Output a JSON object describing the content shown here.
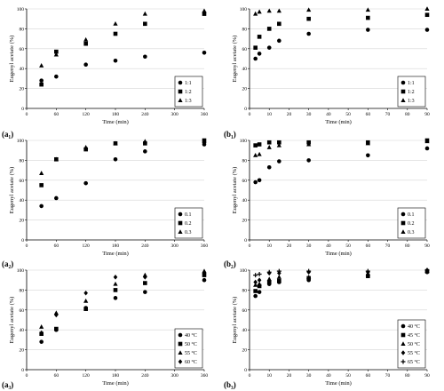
{
  "chart_data": [
    {
      "id": "a1",
      "type": "scatter",
      "panel_label": "",
      "xlabel": "Time (min)",
      "ylabel": "Eugenyl acetate (%)",
      "xlim": [
        0,
        360
      ],
      "ylim": [
        0,
        100
      ],
      "xticks": [
        0,
        60,
        120,
        180,
        240,
        300,
        360
      ],
      "yticks": [
        0,
        20,
        40,
        60,
        80,
        100
      ],
      "legend_position": "bottom-right",
      "series": [
        {
          "name": "1:1",
          "marker": "circle",
          "x": [
            30,
            60,
            120,
            180,
            240,
            360
          ],
          "y": [
            28,
            32,
            44,
            48,
            52,
            56
          ]
        },
        {
          "name": "1:2",
          "marker": "square",
          "x": [
            30,
            60,
            120,
            180,
            240,
            360
          ],
          "y": [
            24,
            57,
            65,
            75,
            85,
            95
          ]
        },
        {
          "name": "1:3",
          "marker": "triangle",
          "x": [
            30,
            60,
            120,
            180,
            240,
            360
          ],
          "y": [
            43,
            54,
            69,
            85,
            95,
            98
          ]
        }
      ]
    },
    {
      "id": "b1",
      "type": "scatter",
      "panel_label": "",
      "xlabel": "Time (min)",
      "ylabel": "Eugenyl acetate (%)",
      "xlim": [
        0,
        90
      ],
      "ylim": [
        0,
        100
      ],
      "xticks": [
        0,
        10,
        20,
        30,
        40,
        50,
        60,
        70,
        80,
        90
      ],
      "yticks": [
        0,
        20,
        40,
        60,
        80,
        100
      ],
      "legend_position": "bottom-right",
      "series": [
        {
          "name": "1:1",
          "marker": "circle",
          "x": [
            3,
            5,
            10,
            15,
            30,
            60,
            90
          ],
          "y": [
            50,
            55,
            61,
            68,
            75,
            79,
            79
          ]
        },
        {
          "name": "1:2",
          "marker": "square",
          "x": [
            3,
            5,
            10,
            15,
            30,
            60,
            90
          ],
          "y": [
            61,
            72,
            80,
            85,
            90,
            91,
            94
          ]
        },
        {
          "name": "1:3",
          "marker": "triangle",
          "x": [
            3,
            5,
            10,
            15,
            30,
            60,
            90
          ],
          "y": [
            95,
            97,
            98,
            98,
            99,
            99,
            100
          ]
        }
      ]
    },
    {
      "id": "a2",
      "type": "scatter",
      "panel_label": "(a₁)",
      "xlabel": "Time (min)",
      "ylabel": "Eugenyl acetate (%)",
      "xlim": [
        0,
        360
      ],
      "ylim": [
        0,
        100
      ],
      "xticks": [
        0,
        60,
        120,
        180,
        240,
        300,
        360
      ],
      "yticks": [
        0,
        20,
        40,
        60,
        80,
        100
      ],
      "legend_position": "bottom-right",
      "series": [
        {
          "name": "0.1",
          "marker": "circle",
          "x": [
            30,
            60,
            120,
            180,
            240,
            360
          ],
          "y": [
            34,
            42,
            57,
            81,
            89,
            96
          ]
        },
        {
          "name": "0.2",
          "marker": "square",
          "x": [
            30,
            60,
            120,
            180,
            240,
            360
          ],
          "y": [
            55,
            81,
            91,
            97,
            97,
            100
          ]
        },
        {
          "name": "0.3",
          "marker": "triangle",
          "x": [
            30,
            60,
            120,
            180,
            240,
            360
          ],
          "y": [
            67,
            81,
            93,
            97,
            99,
            99
          ]
        }
      ]
    },
    {
      "id": "b2",
      "type": "scatter",
      "panel_label": "(b₁)",
      "xlabel": "Time (min)",
      "ylabel": "Eugenyl acetate (%)",
      "xlim": [
        0,
        90
      ],
      "ylim": [
        0,
        100
      ],
      "xticks": [
        0,
        10,
        20,
        30,
        40,
        50,
        60,
        70,
        80,
        90
      ],
      "yticks": [
        0,
        20,
        40,
        60,
        80,
        100
      ],
      "legend_position": "bottom-right",
      "series": [
        {
          "name": "0.1",
          "marker": "circle",
          "x": [
            3,
            5,
            10,
            15,
            30,
            60,
            90
          ],
          "y": [
            58,
            60,
            73,
            79,
            80,
            85,
            92
          ]
        },
        {
          "name": "0.2",
          "marker": "square",
          "x": [
            3,
            5,
            10,
            15,
            30,
            60,
            90
          ],
          "y": [
            95,
            96,
            98,
            98,
            98,
            98,
            100
          ]
        },
        {
          "name": "0.3",
          "marker": "triangle",
          "x": [
            3,
            5,
            10,
            15,
            30,
            60,
            90
          ],
          "y": [
            85,
            86,
            93,
            95,
            96,
            97,
            99
          ]
        }
      ]
    },
    {
      "id": "a3",
      "type": "scatter",
      "panel_label": "(a₂)",
      "xlabel": "Time (min)",
      "ylabel": "Eugenyl acetate (%)",
      "xlim": [
        0,
        360
      ],
      "ylim": [
        0,
        100
      ],
      "xticks": [
        0,
        60,
        120,
        180,
        240,
        300,
        360
      ],
      "yticks": [
        0,
        20,
        40,
        60,
        80,
        100
      ],
      "legend_position": "bottom-right",
      "series": [
        {
          "name": "40 °C",
          "marker": "circle",
          "x": [
            30,
            60,
            120,
            180,
            240,
            360
          ],
          "y": [
            28,
            40,
            62,
            72,
            78,
            90
          ]
        },
        {
          "name": "50 °C",
          "marker": "square",
          "x": [
            30,
            60,
            120,
            180,
            240,
            360
          ],
          "y": [
            36,
            41,
            61,
            80,
            87,
            95
          ]
        },
        {
          "name": "55 °C",
          "marker": "triangle",
          "x": [
            30,
            60,
            120,
            180,
            240,
            360
          ],
          "y": [
            43,
            57,
            69,
            86,
            95,
            99
          ]
        },
        {
          "name": "60 °C",
          "marker": "diamond",
          "x": [
            30,
            60,
            120,
            180,
            240,
            360
          ],
          "y": [
            37,
            55,
            77,
            93,
            93,
            97
          ]
        }
      ]
    },
    {
      "id": "b3",
      "type": "scatter",
      "panel_label": "(b₂)",
      "xlabel": "Time (min)",
      "ylabel": "Eugenyl acetate (%)",
      "xlim": [
        0,
        90
      ],
      "ylim": [
        0,
        100
      ],
      "xticks": [
        0,
        10,
        20,
        30,
        40,
        50,
        60,
        70,
        80,
        90
      ],
      "yticks": [
        0,
        20,
        40,
        60,
        80,
        100
      ],
      "legend_position": "bottom-right",
      "series": [
        {
          "name": "40 °C",
          "marker": "circle",
          "x": [
            3,
            5,
            10,
            15,
            30,
            60,
            90
          ],
          "y": [
            74,
            78,
            86,
            88,
            90,
            95,
            98
          ]
        },
        {
          "name": "45 °C",
          "marker": "square",
          "x": [
            3,
            5,
            10,
            15,
            30,
            60,
            90
          ],
          "y": [
            79,
            84,
            88,
            89,
            92,
            94,
            99
          ]
        },
        {
          "name": "50 °C",
          "marker": "triangle",
          "x": [
            3,
            5,
            10,
            15,
            30,
            60,
            90
          ],
          "y": [
            85,
            86,
            91,
            93,
            93,
            96,
            99
          ]
        },
        {
          "name": "55 °C",
          "marker": "diamond",
          "x": [
            3,
            5,
            10,
            15,
            30,
            60,
            90
          ],
          "y": [
            88,
            90,
            97,
            97,
            98,
            98,
            100
          ]
        },
        {
          "name": "65 °C",
          "marker": "plus",
          "x": [
            3,
            5,
            10,
            15,
            30,
            60,
            90
          ],
          "y": [
            95,
            96,
            98,
            99,
            99,
            99,
            100
          ]
        }
      ]
    }
  ],
  "bottom_labels": [
    "(a₃)",
    "(b₃)"
  ]
}
